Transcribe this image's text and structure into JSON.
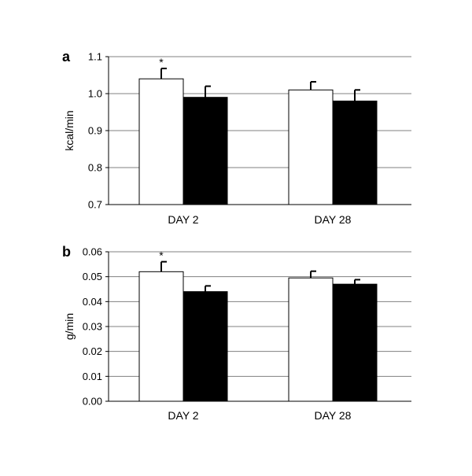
{
  "chart_data": [
    {
      "type": "bar",
      "panel_label": "a",
      "ylabel": "kcal/min",
      "ylim": [
        0.7,
        1.1
      ],
      "yticks": [
        "0.7",
        "0.8",
        "0.9",
        "1.0",
        "1.1"
      ],
      "categories": [
        "DAY 2",
        "DAY 28"
      ],
      "grid": true,
      "series": [
        {
          "fill": "#ffffff",
          "values": [
            1.04,
            1.01
          ],
          "errors": [
            0.028,
            0.022
          ],
          "annotations": [
            "*",
            ""
          ]
        },
        {
          "fill": "#000000",
          "values": [
            0.99,
            0.98
          ],
          "errors": [
            0.03,
            0.03
          ],
          "annotations": [
            "",
            ""
          ]
        }
      ]
    },
    {
      "type": "bar",
      "panel_label": "b",
      "ylabel": "g/min",
      "ylim": [
        0,
        0.06
      ],
      "yticks": [
        "0.00",
        "0.01",
        "0.02",
        "0.03",
        "0.04",
        "0.05",
        "0.06"
      ],
      "categories": [
        "DAY 2",
        "DAY 28"
      ],
      "grid": true,
      "series": [
        {
          "fill": "#ffffff",
          "values": [
            0.052,
            0.0495
          ],
          "errors": [
            0.004,
            0.0027
          ],
          "annotations": [
            "*",
            ""
          ]
        },
        {
          "fill": "#000000",
          "values": [
            0.044,
            0.047
          ],
          "errors": [
            0.0023,
            0.0018
          ],
          "annotations": [
            "",
            ""
          ]
        }
      ]
    }
  ]
}
